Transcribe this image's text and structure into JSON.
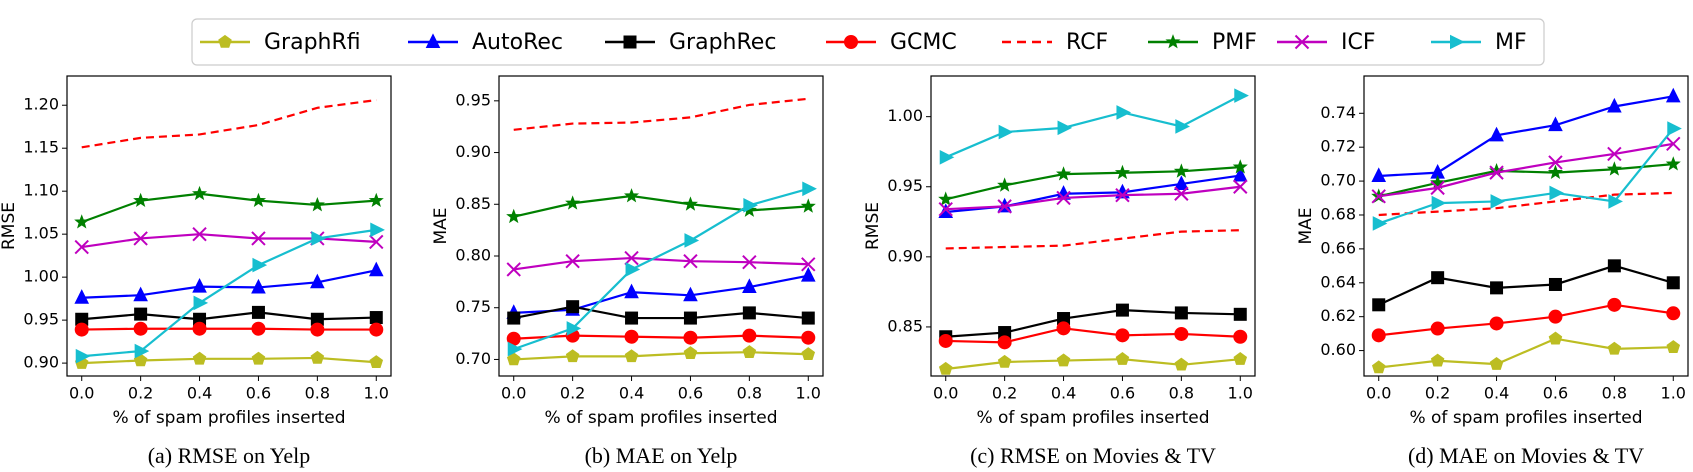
{
  "chart_data": [
    {
      "type": "line",
      "title": "(a) RMSE on Yelp",
      "xlabel": "% of spam profiles inserted",
      "ylabel": "RMSE",
      "x": [
        0,
        0.2,
        0.4,
        0.6,
        0.8,
        1.0
      ],
      "xlim": [
        -0.05,
        1.05
      ],
      "xticks": [
        {
          "value": 0,
          "label": "0.0"
        },
        0.2,
        0.4,
        0.6,
        0.8,
        {
          "value": 1,
          "label": "1.0"
        }
      ],
      "ylim": [
        0.885,
        1.234
      ],
      "yticks": [
        {
          "value": 0.9,
          "label": "0.90"
        },
        0.95,
        {
          "value": 1.0,
          "label": "1.00"
        },
        1.05,
        {
          "value": 1.1,
          "label": "1.10"
        },
        1.15,
        {
          "value": 1.2,
          "label": "1.20"
        }
      ],
      "series": [
        {
          "name": "GraphRfi",
          "color": "#bcbd22",
          "marker": "pentagon",
          "linestyle": "solid",
          "values": [
            0.9,
            0.903,
            0.905,
            0.905,
            0.906,
            0.901
          ]
        },
        {
          "name": "AutoRec",
          "color": "#0000ff",
          "marker": "triangle-up",
          "linestyle": "solid",
          "values": [
            0.976,
            0.979,
            0.989,
            0.988,
            0.994,
            1.008
          ]
        },
        {
          "name": "GraphRec",
          "color": "#000000",
          "marker": "square",
          "linestyle": "solid",
          "values": [
            0.951,
            0.957,
            0.951,
            0.959,
            0.951,
            0.953
          ]
        },
        {
          "name": "GCMC",
          "color": "#ff0000",
          "marker": "circle",
          "linestyle": "solid",
          "values": [
            0.939,
            0.94,
            0.94,
            0.94,
            0.939,
            0.939
          ]
        },
        {
          "name": "RCF",
          "color": "#ff0000",
          "marker": "none",
          "linestyle": "dashed",
          "values": [
            1.151,
            1.162,
            1.166,
            1.177,
            1.197,
            1.206
          ]
        },
        {
          "name": "PMF",
          "color": "#008000",
          "marker": "star",
          "linestyle": "solid",
          "values": [
            1.064,
            1.089,
            1.097,
            1.089,
            1.084,
            1.089
          ]
        },
        {
          "name": "ICF",
          "color": "#bf00bf",
          "marker": "x",
          "linestyle": "solid",
          "values": [
            1.035,
            1.045,
            1.05,
            1.045,
            1.045,
            1.041
          ]
        },
        {
          "name": "MF",
          "color": "#17becf",
          "marker": "triangle-right",
          "linestyle": "solid",
          "values": [
            0.908,
            0.914,
            0.97,
            1.014,
            1.045,
            1.055
          ]
        }
      ]
    },
    {
      "type": "line",
      "title": "(b) MAE on Yelp",
      "xlabel": "% of spam profiles inserted",
      "ylabel": "MAE",
      "x": [
        0,
        0.2,
        0.4,
        0.6,
        0.8,
        1.0
      ],
      "xlim": [
        -0.05,
        1.05
      ],
      "xticks": [
        {
          "value": 0,
          "label": "0.0"
        },
        0.2,
        0.4,
        0.6,
        0.8,
        {
          "value": 1,
          "label": "1.0"
        }
      ],
      "ylim": [
        0.684,
        0.974
      ],
      "yticks": [
        {
          "value": 0.7,
          "label": "0.70"
        },
        0.75,
        {
          "value": 0.8,
          "label": "0.80"
        },
        0.85,
        {
          "value": 0.9,
          "label": "0.90"
        },
        0.95
      ],
      "series": [
        {
          "name": "GraphRfi",
          "color": "#bcbd22",
          "marker": "pentagon",
          "linestyle": "solid",
          "values": [
            0.7,
            0.703,
            0.703,
            0.706,
            0.707,
            0.705
          ]
        },
        {
          "name": "AutoRec",
          "color": "#0000ff",
          "marker": "triangle-up",
          "linestyle": "solid",
          "values": [
            0.745,
            0.748,
            0.765,
            0.762,
            0.77,
            0.781
          ]
        },
        {
          "name": "GraphRec",
          "color": "#000000",
          "marker": "square",
          "linestyle": "solid",
          "values": [
            0.74,
            0.751,
            0.74,
            0.74,
            0.745,
            0.74
          ]
        },
        {
          "name": "GCMC",
          "color": "#ff0000",
          "marker": "circle",
          "linestyle": "solid",
          "values": [
            0.72,
            0.723,
            0.722,
            0.721,
            0.723,
            0.721
          ]
        },
        {
          "name": "RCF",
          "color": "#ff0000",
          "marker": "none",
          "linestyle": "dashed",
          "values": [
            0.922,
            0.928,
            0.929,
            0.934,
            0.946,
            0.952
          ]
        },
        {
          "name": "PMF",
          "color": "#008000",
          "marker": "star",
          "linestyle": "solid",
          "values": [
            0.838,
            0.851,
            0.858,
            0.85,
            0.844,
            0.848
          ]
        },
        {
          "name": "ICF",
          "color": "#bf00bf",
          "marker": "x",
          "linestyle": "solid",
          "values": [
            0.787,
            0.795,
            0.798,
            0.795,
            0.794,
            0.792
          ]
        },
        {
          "name": "MF",
          "color": "#17becf",
          "marker": "triangle-right",
          "linestyle": "solid",
          "values": [
            0.71,
            0.73,
            0.787,
            0.815,
            0.849,
            0.865
          ]
        }
      ]
    },
    {
      "type": "line",
      "title": "(c) RMSE on Movies & TV",
      "xlabel": "% of spam profiles inserted",
      "ylabel": "RMSE",
      "x": [
        0,
        0.2,
        0.4,
        0.6,
        0.8,
        1.0
      ],
      "xlim": [
        -0.05,
        1.05
      ],
      "xticks": [
        {
          "value": 0,
          "label": "0.0"
        },
        0.2,
        0.4,
        0.6,
        0.8,
        {
          "value": 1,
          "label": "1.0"
        }
      ],
      "ylim": [
        0.815,
        1.029
      ],
      "yticks": [
        0.85,
        {
          "value": 0.9,
          "label": "0.90"
        },
        0.95,
        {
          "value": 1.0,
          "label": "1.00"
        }
      ],
      "series": [
        {
          "name": "GraphRfi",
          "color": "#bcbd22",
          "marker": "pentagon",
          "linestyle": "solid",
          "values": [
            0.82,
            0.825,
            0.826,
            0.827,
            0.823,
            0.827
          ]
        },
        {
          "name": "AutoRec",
          "color": "#0000ff",
          "marker": "triangle-up",
          "linestyle": "solid",
          "values": [
            0.932,
            0.936,
            0.945,
            0.946,
            0.952,
            0.958
          ]
        },
        {
          "name": "GraphRec",
          "color": "#000000",
          "marker": "square",
          "linestyle": "solid",
          "values": [
            0.843,
            0.846,
            0.856,
            0.862,
            0.86,
            0.859
          ]
        },
        {
          "name": "GCMC",
          "color": "#ff0000",
          "marker": "circle",
          "linestyle": "solid",
          "values": [
            0.84,
            0.839,
            0.849,
            0.844,
            0.845,
            0.843
          ]
        },
        {
          "name": "RCF",
          "color": "#ff0000",
          "marker": "none",
          "linestyle": "dashed",
          "values": [
            0.906,
            0.907,
            0.908,
            0.913,
            0.918,
            0.919
          ]
        },
        {
          "name": "PMF",
          "color": "#008000",
          "marker": "star",
          "linestyle": "solid",
          "values": [
            0.941,
            0.951,
            0.959,
            0.96,
            0.961,
            0.964
          ]
        },
        {
          "name": "ICF",
          "color": "#bf00bf",
          "marker": "x",
          "linestyle": "solid",
          "values": [
            0.934,
            0.936,
            0.942,
            0.944,
            0.945,
            0.95
          ]
        },
        {
          "name": "MF",
          "color": "#17becf",
          "marker": "triangle-right",
          "linestyle": "solid",
          "values": [
            0.971,
            0.989,
            0.992,
            1.003,
            0.993,
            1.015
          ]
        }
      ]
    },
    {
      "type": "line",
      "title": "(d) MAE on Movies & TV",
      "xlabel": "% of spam profiles inserted",
      "ylabel": "MAE",
      "x": [
        0,
        0.2,
        0.4,
        0.6,
        0.8,
        1.0
      ],
      "xlim": [
        -0.05,
        1.05
      ],
      "xticks": [
        {
          "value": 0,
          "label": "0.0"
        },
        0.2,
        0.4,
        0.6,
        0.8,
        {
          "value": 1,
          "label": "1.0"
        }
      ],
      "ylim": [
        0.585,
        0.762
      ],
      "yticks": [
        {
          "value": 0.6,
          "label": "0.60"
        },
        0.62,
        0.64,
        0.66,
        0.68,
        {
          "value": 0.7,
          "label": "0.70"
        },
        0.72,
        0.74
      ],
      "series": [
        {
          "name": "GraphRfi",
          "color": "#bcbd22",
          "marker": "pentagon",
          "linestyle": "solid",
          "values": [
            0.59,
            0.594,
            0.592,
            0.607,
            0.601,
            0.602
          ]
        },
        {
          "name": "AutoRec",
          "color": "#0000ff",
          "marker": "triangle-up",
          "linestyle": "solid",
          "values": [
            0.703,
            0.705,
            0.727,
            0.733,
            0.744,
            0.75
          ]
        },
        {
          "name": "GraphRec",
          "color": "#000000",
          "marker": "square",
          "linestyle": "solid",
          "values": [
            0.627,
            0.643,
            0.637,
            0.639,
            0.65,
            0.64
          ]
        },
        {
          "name": "GCMC",
          "color": "#ff0000",
          "marker": "circle",
          "linestyle": "solid",
          "values": [
            0.609,
            0.613,
            0.616,
            0.62,
            0.627,
            0.622
          ]
        },
        {
          "name": "RCF",
          "color": "#ff0000",
          "marker": "none",
          "linestyle": "dashed",
          "values": [
            0.68,
            0.682,
            0.684,
            0.688,
            0.692,
            0.693
          ]
        },
        {
          "name": "PMF",
          "color": "#008000",
          "marker": "star",
          "linestyle": "solid",
          "values": [
            0.691,
            0.699,
            0.706,
            0.705,
            0.707,
            0.71
          ]
        },
        {
          "name": "ICF",
          "color": "#bf00bf",
          "marker": "x",
          "linestyle": "solid",
          "values": [
            0.691,
            0.696,
            0.705,
            0.711,
            0.716,
            0.722
          ]
        },
        {
          "name": "MF",
          "color": "#17becf",
          "marker": "triangle-right",
          "linestyle": "solid",
          "values": [
            0.675,
            0.687,
            0.688,
            0.693,
            0.688,
            0.731
          ]
        }
      ]
    }
  ]
}
